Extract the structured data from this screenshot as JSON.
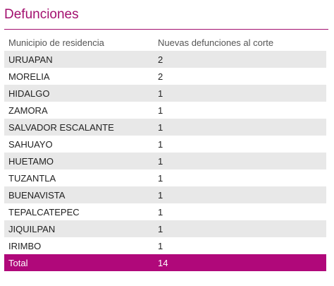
{
  "header": {
    "title": "Defunciones"
  },
  "table": {
    "columns": [
      "Municipio de residencia",
      "Nuevas defunciones al corte"
    ],
    "rows": [
      {
        "municipio": "URUAPAN",
        "defunciones": "2"
      },
      {
        "municipio": "MORELIA",
        "defunciones": "2"
      },
      {
        "municipio": "HIDALGO",
        "defunciones": "1"
      },
      {
        "municipio": "ZAMORA",
        "defunciones": "1"
      },
      {
        "municipio": "SALVADOR ESCALANTE",
        "defunciones": "1"
      },
      {
        "municipio": "SAHUAYO",
        "defunciones": "1"
      },
      {
        "municipio": "HUETAMO",
        "defunciones": "1"
      },
      {
        "municipio": "TUZANTLA",
        "defunciones": "1"
      },
      {
        "municipio": "BUENAVISTA",
        "defunciones": "1"
      },
      {
        "municipio": "TEPALCATEPEC",
        "defunciones": "1"
      },
      {
        "municipio": "JIQUILPAN",
        "defunciones": "1"
      },
      {
        "municipio": "IRIMBO",
        "defunciones": "1"
      }
    ],
    "total": {
      "label": "Total",
      "value": "14"
    }
  },
  "colors": {
    "accent": "#a3106f",
    "total_row": "#b0087a",
    "stripe": "#e8e8e8"
  }
}
